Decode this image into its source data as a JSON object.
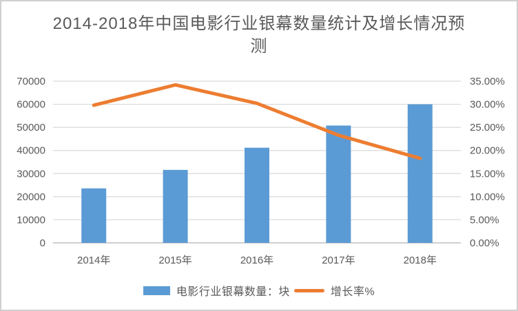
{
  "chart_data": {
    "type": "combo",
    "title": "2014-2018年中国电影行业银幕数量统计及增长情况预测",
    "categories": [
      "2014年",
      "2015年",
      "2016年",
      "2017年",
      "2018年"
    ],
    "series": [
      {
        "name": "电影行业银幕数量：块",
        "type": "bar",
        "axis": "left",
        "color": "#5B9BD5",
        "values": [
          23600,
          31600,
          41200,
          50800,
          60000
        ]
      },
      {
        "name": "增长率%",
        "type": "line",
        "axis": "right",
        "color": "#ED7D31",
        "values": [
          29.8,
          34.2,
          30.2,
          23.3,
          18.3
        ]
      }
    ],
    "left_axis": {
      "max": 70000,
      "ticks": [
        0,
        10000,
        20000,
        30000,
        40000,
        50000,
        60000,
        70000
      ],
      "labels": [
        "0",
        "10000",
        "20000",
        "30000",
        "40000",
        "50000",
        "60000",
        "70000"
      ]
    },
    "right_axis": {
      "max": 35,
      "ticks": [
        0,
        5,
        10,
        15,
        20,
        25,
        30,
        35
      ],
      "labels": [
        "0.00%",
        "5.00%",
        "10.00%",
        "15.00%",
        "20.00%",
        "25.00%",
        "30.00%",
        "35.00%"
      ]
    },
    "grid": true,
    "legend_position": "bottom",
    "colors": {
      "grid": "#D9D9D9",
      "axis": "#BFBFBF",
      "text": "#595959",
      "title": "#595959",
      "background": "#FFFFFF",
      "border": "#CFCFCF"
    }
  }
}
